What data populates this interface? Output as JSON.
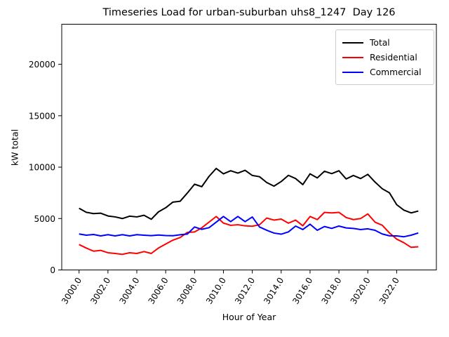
{
  "chart_data": {
    "type": "line",
    "title": "Timeseries Load for urban-suburban uhs8_1247  Day 126",
    "xlabel": "Hour of Year",
    "ylabel": "kW total",
    "xlim": [
      2998.8,
      3024.75
    ],
    "ylim": [
      0,
      23900
    ],
    "grid": false,
    "legend_position": "upper right",
    "x_ticks": {
      "values": [
        3000,
        3002,
        3004,
        3006,
        3008,
        3010,
        3012,
        3014,
        3016,
        3018,
        3020,
        3022
      ],
      "labels": [
        "3000.0",
        "3002.0",
        "3004.0",
        "3006.0",
        "3008.0",
        "3010.0",
        "3012.0",
        "3014.0",
        "3016.0",
        "3018.0",
        "3020.0",
        "3022.0"
      ],
      "rotation_deg": 58
    },
    "y_ticks": {
      "values": [
        0,
        5000,
        10000,
        15000,
        20000
      ],
      "labels": [
        "0",
        "5000",
        "10000",
        "15000",
        "20000"
      ]
    },
    "x": [
      3000.0,
      3000.5,
      3001.0,
      3001.5,
      3002.0,
      3002.5,
      3003.0,
      3003.5,
      3004.0,
      3004.5,
      3005.0,
      3005.5,
      3006.0,
      3006.5,
      3007.0,
      3007.5,
      3008.0,
      3008.5,
      3009.0,
      3009.5,
      3010.0,
      3010.5,
      3011.0,
      3011.5,
      3012.0,
      3012.5,
      3013.0,
      3013.5,
      3014.0,
      3014.5,
      3015.0,
      3015.5,
      3016.0,
      3016.5,
      3017.0,
      3017.5,
      3018.0,
      3018.5,
      3019.0,
      3019.5,
      3020.0,
      3020.5,
      3021.0,
      3021.5,
      3022.0,
      3022.5,
      3023.0,
      3023.5
    ],
    "series": [
      {
        "name": "Total",
        "color": "#000000",
        "values": [
          6000,
          5610,
          5480,
          5520,
          5250,
          5160,
          5000,
          5230,
          5160,
          5320,
          4930,
          5650,
          6050,
          6600,
          6680,
          7480,
          8340,
          8100,
          9100,
          9870,
          9350,
          9650,
          9420,
          9690,
          9190,
          9070,
          8500,
          8150,
          8600,
          9200,
          8890,
          8300,
          9350,
          8950,
          9600,
          9370,
          9650,
          8850,
          9190,
          8890,
          9300,
          8550,
          7900,
          7500,
          6350,
          5820,
          5550,
          5730
        ]
      },
      {
        "name": "Residential",
        "color": "#ff0000",
        "values": [
          2470,
          2130,
          1830,
          1900,
          1675,
          1605,
          1515,
          1675,
          1605,
          1790,
          1605,
          2130,
          2515,
          2900,
          3150,
          3650,
          3700,
          4100,
          4650,
          5200,
          4560,
          4340,
          4400,
          4290,
          4250,
          4400,
          5050,
          4850,
          4950,
          4550,
          4850,
          4300,
          5200,
          4900,
          5600,
          5550,
          5600,
          5100,
          4900,
          5000,
          5450,
          4650,
          4350,
          3600,
          3000,
          2650,
          2200,
          2250
        ]
      },
      {
        "name": "Commercial",
        "color": "#0000ff",
        "values": [
          3500,
          3380,
          3450,
          3310,
          3430,
          3310,
          3430,
          3310,
          3430,
          3380,
          3340,
          3400,
          3350,
          3330,
          3420,
          3490,
          4180,
          3950,
          4110,
          4650,
          5200,
          4700,
          5200,
          4700,
          5150,
          4180,
          3860,
          3590,
          3480,
          3700,
          4270,
          3930,
          4450,
          3860,
          4225,
          4040,
          4270,
          4090,
          4040,
          3930,
          4000,
          3860,
          3500,
          3320,
          3310,
          3230,
          3380,
          3600
        ]
      }
    ]
  }
}
